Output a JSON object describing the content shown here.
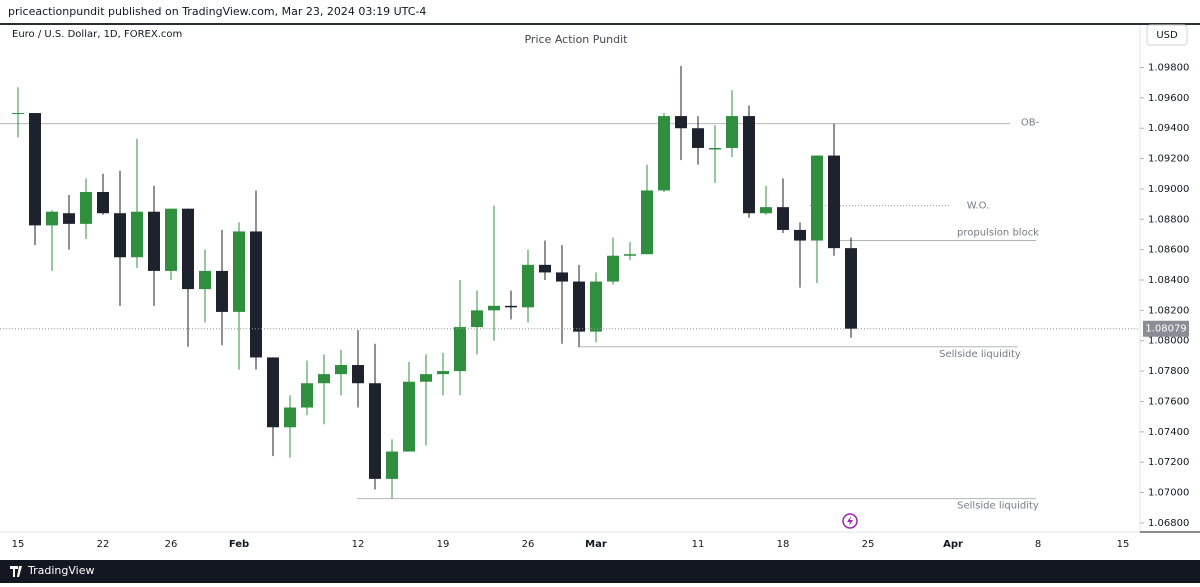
{
  "header": {
    "text": "priceactionpundit published on TradingView.com, Mar 23, 2024 03:19 UTC-4"
  },
  "footer": {
    "brand": "TradingView"
  },
  "chart_data": {
    "type": "candlestick",
    "title": "Price Action Pundit",
    "symbol": "Euro / U.S. Dollar, 1D, FOREX.com",
    "currency": "USD",
    "up_color": "#2f8f3e",
    "down_color": "#1e222d",
    "categories": [
      "15",
      null,
      null,
      null,
      null,
      "22",
      null,
      null,
      null,
      "26",
      null,
      null,
      null,
      "Feb",
      null,
      null,
      null,
      null,
      null,
      null,
      "12",
      null,
      null,
      null,
      null,
      "19",
      null,
      null,
      null,
      null,
      "26",
      null,
      null,
      null,
      "Mar",
      null,
      null,
      null,
      null,
      null,
      "11",
      null,
      null,
      null,
      null,
      "18",
      null,
      null,
      null,
      null
    ],
    "future_labels": [
      "25",
      "Apr",
      "8",
      "15"
    ],
    "open": [
      1.095,
      1.095,
      1.0876,
      1.0884,
      1.0877,
      1.0898,
      1.0884,
      1.0855,
      1.0885,
      1.0846,
      1.0887,
      1.0834,
      1.0846,
      1.0819,
      1.0872,
      1.0789,
      1.0743,
      1.0756,
      1.0772,
      1.0778,
      1.0784,
      1.0772,
      1.0709,
      1.0727,
      1.0773,
      1.0778,
      1.078,
      1.0809,
      1.082,
      1.0823,
      1.0822,
      1.085,
      1.0845,
      1.0839,
      1.0806,
      1.0839,
      1.0856,
      1.0857,
      1.0899,
      1.0948,
      1.094,
      1.0926,
      1.0927,
      1.0948,
      1.0884,
      1.0888,
      1.0873,
      1.0866,
      1.0922,
      1.0861
    ],
    "high": [
      1.0967,
      1.095,
      1.0886,
      1.0896,
      1.0907,
      1.091,
      1.0912,
      1.0933,
      1.0902,
      1.0887,
      1.0887,
      1.086,
      1.0873,
      1.0878,
      1.0899,
      1.0789,
      1.0764,
      1.0787,
      1.0791,
      1.0794,
      1.0807,
      1.0798,
      1.0735,
      1.0786,
      1.0791,
      1.0792,
      1.084,
      1.0833,
      1.0889,
      1.0833,
      1.086,
      1.0866,
      1.0863,
      1.085,
      1.0845,
      1.0868,
      1.0865,
      1.0916,
      1.095,
      1.0981,
      1.0948,
      1.0942,
      1.0965,
      1.0955,
      1.0902,
      1.0907,
      1.0878,
      1.0922,
      1.0943,
      1.0868
    ],
    "low": [
      1.0934,
      1.0863,
      1.0846,
      1.086,
      1.0867,
      1.0883,
      1.0823,
      1.0848,
      1.0823,
      1.084,
      1.0796,
      1.0812,
      1.0797,
      1.0781,
      1.0781,
      1.0724,
      1.0723,
      1.0751,
      1.0745,
      1.0764,
      1.0756,
      1.0702,
      1.0696,
      1.0727,
      1.0731,
      1.0764,
      1.0764,
      1.0791,
      1.08,
      1.0814,
      1.0812,
      1.084,
      1.0798,
      1.0796,
      1.0799,
      1.0837,
      1.0853,
      1.0857,
      1.0898,
      1.0919,
      1.0916,
      1.0904,
      1.0921,
      1.0881,
      1.0883,
      1.0871,
      1.0835,
      1.0838,
      1.0856,
      1.0802
    ],
    "close": [
      1.095,
      1.0876,
      1.0885,
      1.0877,
      1.0898,
      1.0884,
      1.0855,
      1.0885,
      1.0846,
      1.0887,
      1.0834,
      1.0846,
      1.0819,
      1.0872,
      1.0789,
      1.0743,
      1.0756,
      1.0772,
      1.0778,
      1.0784,
      1.0772,
      1.0709,
      1.0727,
      1.0773,
      1.0778,
      1.078,
      1.0809,
      1.082,
      1.0823,
      1.0822,
      1.085,
      1.0845,
      1.0839,
      1.0806,
      1.0839,
      1.0856,
      1.0857,
      1.0899,
      1.0948,
      1.094,
      1.0927,
      1.0927,
      1.0948,
      1.0884,
      1.0888,
      1.0873,
      1.0866,
      1.0922,
      1.0861,
      1.08079
    ],
    "ylim": [
      1.0674,
      1.1008
    ],
    "yticks": [
      {
        "value": 1.068,
        "label": "1.06800"
      },
      {
        "value": 1.07,
        "label": "1.07000"
      },
      {
        "value": 1.072,
        "label": "1.07200"
      },
      {
        "value": 1.074,
        "label": "1.07400"
      },
      {
        "value": 1.076,
        "label": "1.07600"
      },
      {
        "value": 1.078,
        "label": "1.07800"
      },
      {
        "value": 1.08,
        "label": "1.08000"
      },
      {
        "value": 1.082,
        "label": "1.08200"
      },
      {
        "value": 1.084,
        "label": "1.08400"
      },
      {
        "value": 1.086,
        "label": "1.08600"
      },
      {
        "value": 1.088,
        "label": "1.08800"
      },
      {
        "value": 1.09,
        "label": "1.09000"
      },
      {
        "value": 1.092,
        "label": "1.09200"
      },
      {
        "value": 1.094,
        "label": "1.09400"
      },
      {
        "value": 1.096,
        "label": "1.09600"
      },
      {
        "value": 1.098,
        "label": "1.09800"
      }
    ],
    "annotations": [
      {
        "label": "OB-",
        "value": 1.0943
      },
      {
        "label": "W.O.",
        "value": 1.0889
      },
      {
        "label": "propulsion block",
        "value": 1.0866
      },
      {
        "label": "Sellside liquidity",
        "value": 1.0796
      },
      {
        "label": "Sellside liquidity",
        "value": 1.0696
      }
    ]
  }
}
